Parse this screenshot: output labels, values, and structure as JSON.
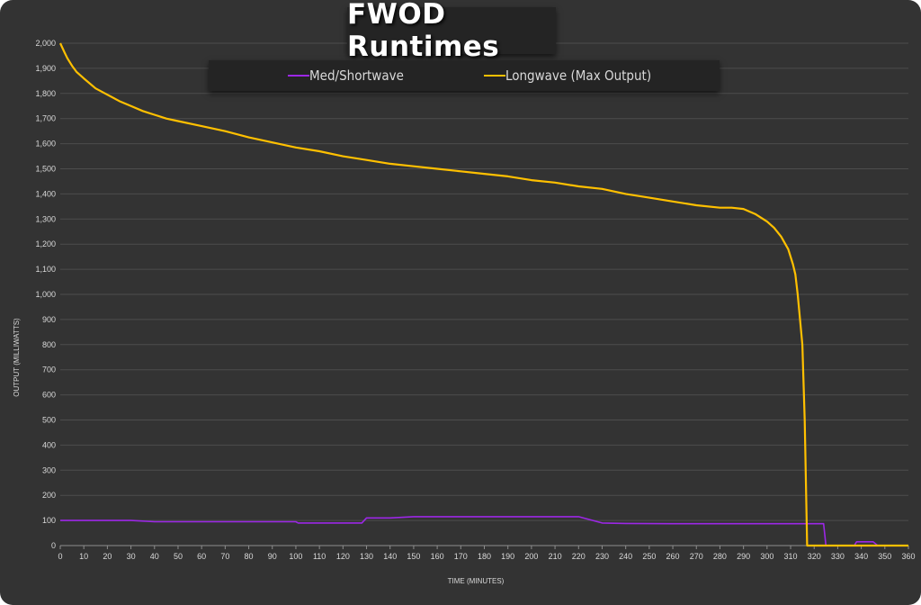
{
  "chart_data": {
    "type": "line",
    "title": "FWOD Runtimes",
    "xlabel": "TIME (MINUTES)",
    "ylabel": "OUTPUT (MILLIWATTS)",
    "xlim": [
      0,
      360
    ],
    "ylim": [
      0,
      2000
    ],
    "x_ticks": [
      0,
      10,
      20,
      30,
      40,
      50,
      60,
      70,
      80,
      90,
      100,
      110,
      120,
      130,
      140,
      150,
      160,
      170,
      180,
      190,
      200,
      210,
      220,
      230,
      240,
      250,
      260,
      270,
      280,
      290,
      300,
      310,
      320,
      330,
      340,
      350,
      360
    ],
    "x_tick_labels": [
      "0",
      "10",
      "20",
      "30",
      "40",
      "50",
      "60",
      "70",
      "80",
      "90",
      "100",
      "110",
      "120",
      "130",
      "140",
      "150",
      "160",
      "170",
      "180",
      "190",
      "200",
      "210",
      "220",
      "230",
      "240",
      "250",
      "260",
      "270",
      "280",
      "290",
      "300",
      "310",
      "320",
      "330",
      "340",
      "350",
      "360"
    ],
    "y_ticks": [
      0,
      100,
      200,
      300,
      400,
      500,
      600,
      700,
      800,
      900,
      1000,
      1100,
      1200,
      1300,
      1400,
      1500,
      1600,
      1700,
      1800,
      1900,
      2000
    ],
    "y_tick_labels": [
      "0",
      "100",
      "200",
      "300",
      "400",
      "500",
      "600",
      "700",
      "800",
      "900",
      "1,000",
      "1,100",
      "1,200",
      "1,300",
      "1,400",
      "1,500",
      "1,600",
      "1,700",
      "1,800",
      "1,900",
      "2,000"
    ],
    "grid": "horizontal",
    "legend_position": "top",
    "series": [
      {
        "name": "Med/Shortwave",
        "color": "#9c27e6",
        "x": [
          0,
          10,
          20,
          30,
          40,
          60,
          80,
          100,
          101,
          110,
          120,
          128,
          130,
          140,
          150,
          160,
          180,
          200,
          220,
          230,
          240,
          260,
          280,
          300,
          310,
          324,
          325,
          330,
          337,
          338,
          345,
          347,
          350
        ],
        "y": [
          100,
          100,
          100,
          100,
          95,
          95,
          95,
          95,
          90,
          90,
          90,
          90,
          110,
          110,
          115,
          115,
          115,
          115,
          115,
          90,
          88,
          87,
          87,
          87,
          87,
          87,
          0,
          0,
          0,
          15,
          15,
          0,
          0
        ]
      },
      {
        "name": "Longwave (Max Output)",
        "color": "#ffc000",
        "x": [
          0,
          1,
          2,
          3,
          5,
          7,
          10,
          15,
          20,
          25,
          30,
          35,
          40,
          45,
          50,
          60,
          70,
          80,
          90,
          100,
          110,
          120,
          130,
          140,
          150,
          160,
          170,
          180,
          190,
          200,
          210,
          220,
          230,
          240,
          250,
          260,
          270,
          280,
          285,
          290,
          295,
          300,
          303,
          306,
          309,
          311,
          312,
          313,
          314,
          315,
          316,
          317,
          318,
          320,
          330,
          340,
          350,
          360
        ],
        "y": [
          2000,
          1980,
          1960,
          1940,
          1910,
          1885,
          1860,
          1820,
          1795,
          1770,
          1750,
          1730,
          1715,
          1700,
          1690,
          1670,
          1650,
          1625,
          1605,
          1585,
          1570,
          1550,
          1535,
          1520,
          1510,
          1500,
          1490,
          1480,
          1470,
          1455,
          1445,
          1430,
          1420,
          1400,
          1385,
          1370,
          1355,
          1345,
          1345,
          1340,
          1320,
          1290,
          1265,
          1230,
          1180,
          1120,
          1080,
          1000,
          900,
          800,
          500,
          0,
          0,
          0,
          0,
          0,
          0,
          0
        ]
      }
    ]
  }
}
